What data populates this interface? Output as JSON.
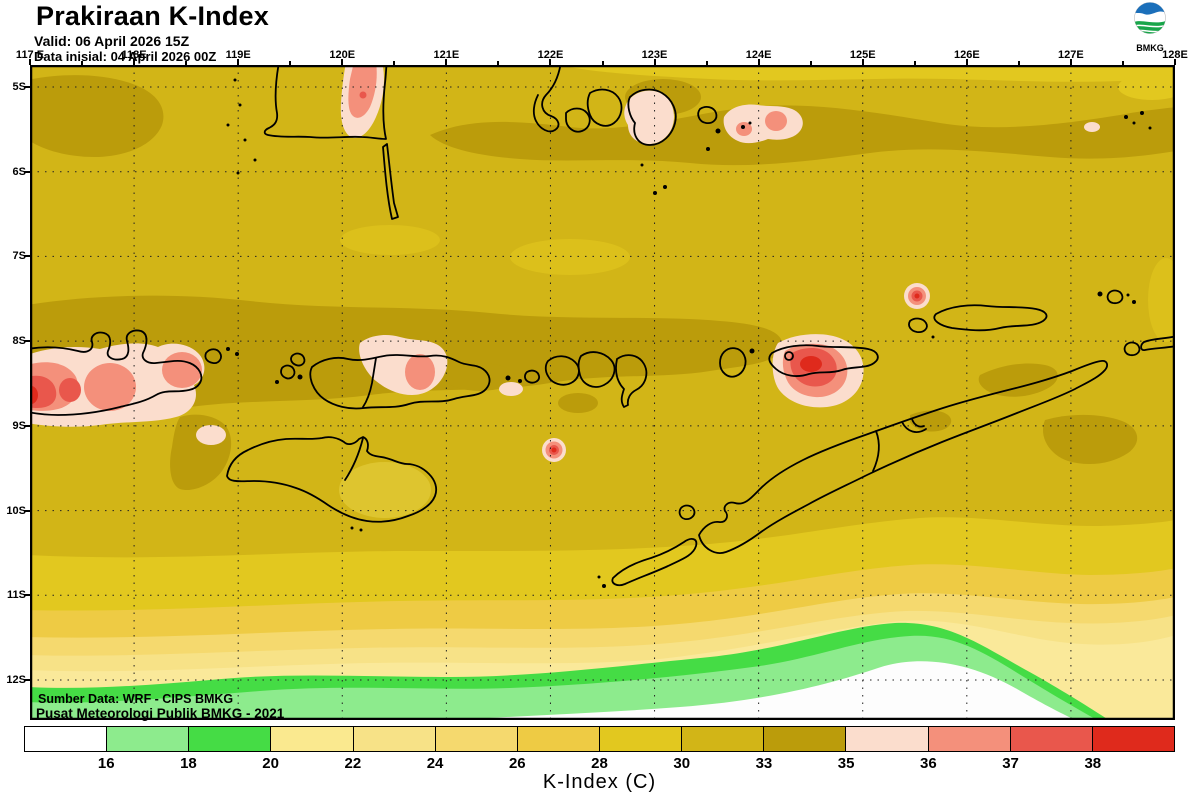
{
  "header": {
    "title": "Prakiraan K-Index",
    "valid": "Valid: 06 April 2026 15Z",
    "data_inisial": "Data inisial: 04 April 2026 00Z"
  },
  "logo": {
    "label": "BMKG"
  },
  "axes": {
    "lon_labels": [
      "117 E",
      "118E",
      "119E",
      "120E",
      "121E",
      "122E",
      "123E",
      "124E",
      "125E",
      "126E",
      "127E",
      "128E"
    ],
    "lat_labels": [
      "5S",
      "6S",
      "7S",
      "8S",
      "9S",
      "10S",
      "11S",
      "12S"
    ]
  },
  "map_annotations": {
    "source_line1": "Sumber Data: WRF - CIPS BMKG",
    "source_line2": "Pusat Meteorologi Publik BMKG - 2021"
  },
  "colorbar": {
    "label": "K-Index (C)",
    "tick_labels": [
      "16",
      "18",
      "20",
      "22",
      "24",
      "26",
      "28",
      "30",
      "33",
      "35",
      "36",
      "37",
      "38"
    ],
    "segment_colors": [
      "#ffffff",
      "#8deb8d",
      "#45dc45",
      "#fae98f",
      "#f7e287",
      "#f5d96e",
      "#eecb44",
      "#e2c81f",
      "#d2b517",
      "#bb9c0b",
      "#fbddcd",
      "#f4907b",
      "#e9574c",
      "#df2a1c"
    ]
  },
  "chart_data": {
    "type": "filled-contour-map",
    "title": "Prakiraan K-Index",
    "unit": "C",
    "lon_range": [
      "117E",
      "128E"
    ],
    "lat_range": [
      "5S",
      "12.5S"
    ],
    "contour_levels": [
      16,
      18,
      20,
      22,
      24,
      26,
      28,
      30,
      33,
      35,
      36,
      37,
      38
    ],
    "level_colors": [
      "#ffffff",
      "#8deb8d",
      "#45dc45",
      "#fae98f",
      "#f7e287",
      "#f5d96e",
      "#eecb44",
      "#e2c81f",
      "#d2b517",
      "#bb9c0b",
      "#fbddcd",
      "#f4907b",
      "#e9574c",
      "#df2a1c"
    ],
    "background_field": "30-33 (gold) over most of the domain; 33-35 (olive) in an east-west band near 8-9.5S and along the 5-5.5S northern strip",
    "southern_gradient": "values decrease southward of 10S through 28,26,24,22,20 bands; green 16-20 band near 12S and white <16 at the far south, larger toward the southeast",
    "hotspots": [
      {
        "location": "~120E 5-5.5S (Teluk Bone)",
        "value": "36-38"
      },
      {
        "location": "~122.9E 5.8S (Buton)",
        "value": "35-36"
      },
      {
        "location": "~123.5-124E 5.5S (Wakatobi)",
        "value": "36-37"
      },
      {
        "location": "~125.6E 7.7S (Laut Banda)",
        "value": ">38"
      },
      {
        "location": "~117-118E 8.5-9S (Sumbawa)",
        "value": ">38"
      },
      {
        "location": "~120.5-121E 8.5S (Flores tengah)",
        "value": "36-37"
      },
      {
        "location": "~122.1E 9.5S (selatan Flores)",
        "value": ">38"
      },
      {
        "location": "~124-124.8E 8.3-8.8S (Pantar-Alor)",
        "value": ">38"
      },
      {
        "location": "~118.6E 9.3S (barat laut Sumba)",
        "value": "35-36"
      }
    ]
  }
}
